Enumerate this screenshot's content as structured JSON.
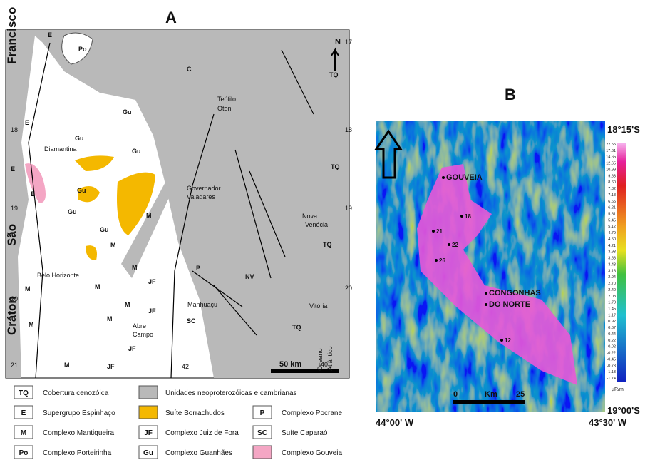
{
  "panel_a": {
    "label": "A",
    "map_labels": [
      "Francisco",
      "São",
      "Cráton",
      "Po",
      "E",
      "E",
      "E",
      "E",
      "Gu",
      "Gu",
      "Gu",
      "Gu",
      "Gu",
      "Gu",
      "M",
      "M",
      "M",
      "M",
      "M",
      "M",
      "M",
      "M",
      "M",
      "JF",
      "JF",
      "JF",
      "JF",
      "TQ",
      "TQ",
      "TQ",
      "TQ",
      "Teófilo",
      "Otoni",
      "Diamantina",
      "Governador",
      "Valadares",
      "Nova",
      "Venécia",
      "Belo Horizonte",
      "Manhuaçu",
      "Abre",
      "Campo",
      "Vitória",
      "Oceano",
      "Atlântico",
      "SC",
      "P",
      "NV",
      "C",
      "N",
      "17",
      "18",
      "18",
      "19",
      "19",
      "20",
      "20",
      "21",
      "42",
      "40"
    ],
    "scale": "50 km",
    "legend": [
      {
        "code": "TQ",
        "text": "Cobertura cenozóica"
      },
      {
        "code": "E",
        "text": "Supergrupo Espinhaço"
      },
      {
        "code": "M",
        "text": "Complexo Mantiqueira"
      },
      {
        "code": "Po",
        "text": "Complexo Porteirinha"
      },
      {
        "text": "Unidades neoproterozóicas e cambrianas"
      },
      {
        "text": "Suíte Borrachudos"
      },
      {
        "code": "JF",
        "text": "Complexo Juiz de Fora"
      },
      {
        "code": "Gu",
        "text": "Complexo Guanhães"
      },
      {
        "code": "P",
        "text": "Complexo Pocrane"
      },
      {
        "code": "SC",
        "text": "Suíte Caparaó"
      },
      {
        "text": "Complexo Gouveia"
      }
    ]
  },
  "panel_b": {
    "label": "B",
    "place_labels": [
      "GOUVEIA",
      "18",
      "21",
      "22",
      "26",
      "CONGONHAS",
      "DO NORTE",
      "12"
    ],
    "scale": [
      "0",
      "Km",
      "25"
    ],
    "coords": [
      "18°15'S",
      "19°00'S",
      "44°00' W",
      "43°30' W"
    ],
    "colorbar": {
      "unit": "µR/m",
      "ticks": [
        "22.55",
        "17.61",
        "14.65",
        "12.65",
        "10.99",
        "9.63",
        "8.60",
        "7.82",
        "7.18",
        "6.65",
        "6.21",
        "5.81",
        "5.45",
        "5.12",
        "4.79",
        "4.50",
        "4.21",
        "3.93",
        "3.68",
        "3.43",
        "3.18",
        "2.94",
        "2.70",
        "2.40",
        "2.08",
        "1.78",
        "1.45",
        "1.17",
        "0.92",
        "0.67",
        "0.44",
        "0.22",
        "-0.02",
        "-0.22",
        "-0.45",
        "-0.73",
        "-1.13",
        "-1.74"
      ]
    }
  }
}
